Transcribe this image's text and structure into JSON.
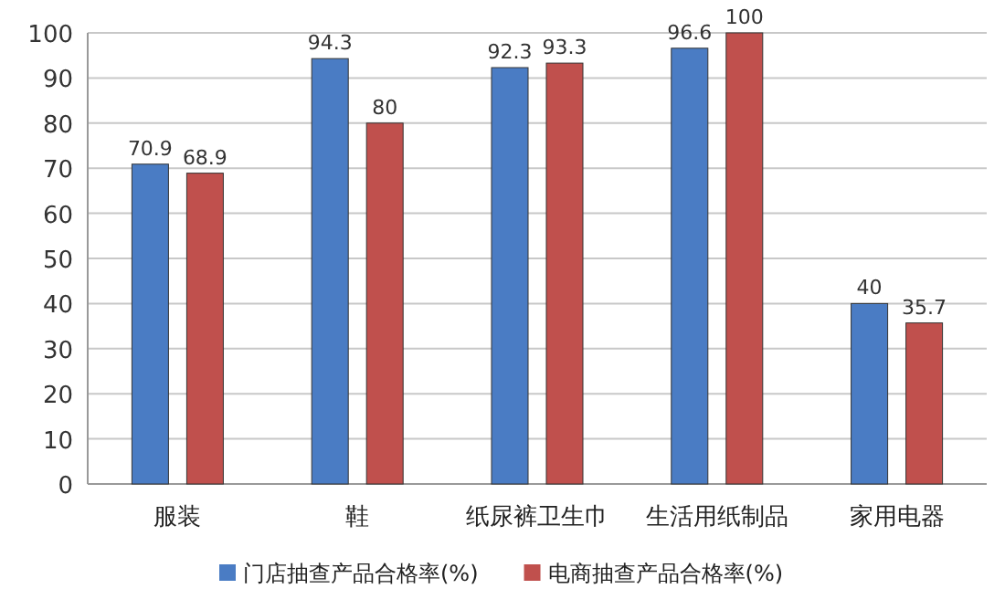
{
  "chart_data": {
    "type": "bar",
    "categories": [
      "服装",
      "鞋",
      "纸尿裤卫生巾",
      "生活用纸制品",
      "家用电器"
    ],
    "series": [
      {
        "name": "门店抽查产品合格率(%)",
        "color": "#4a7cc4",
        "values": [
          70.9,
          94.3,
          92.3,
          96.6,
          40
        ]
      },
      {
        "name": "电商抽查产品合格率(%)",
        "color": "#c0504d",
        "values": [
          68.9,
          80,
          93.3,
          100,
          35.7
        ]
      }
    ],
    "ylim": [
      0,
      100
    ],
    "yticks": [
      0,
      10,
      20,
      30,
      40,
      50,
      60,
      70,
      80,
      90,
      100
    ],
    "grid": "y",
    "legend": "bottom",
    "data_labels": true
  }
}
